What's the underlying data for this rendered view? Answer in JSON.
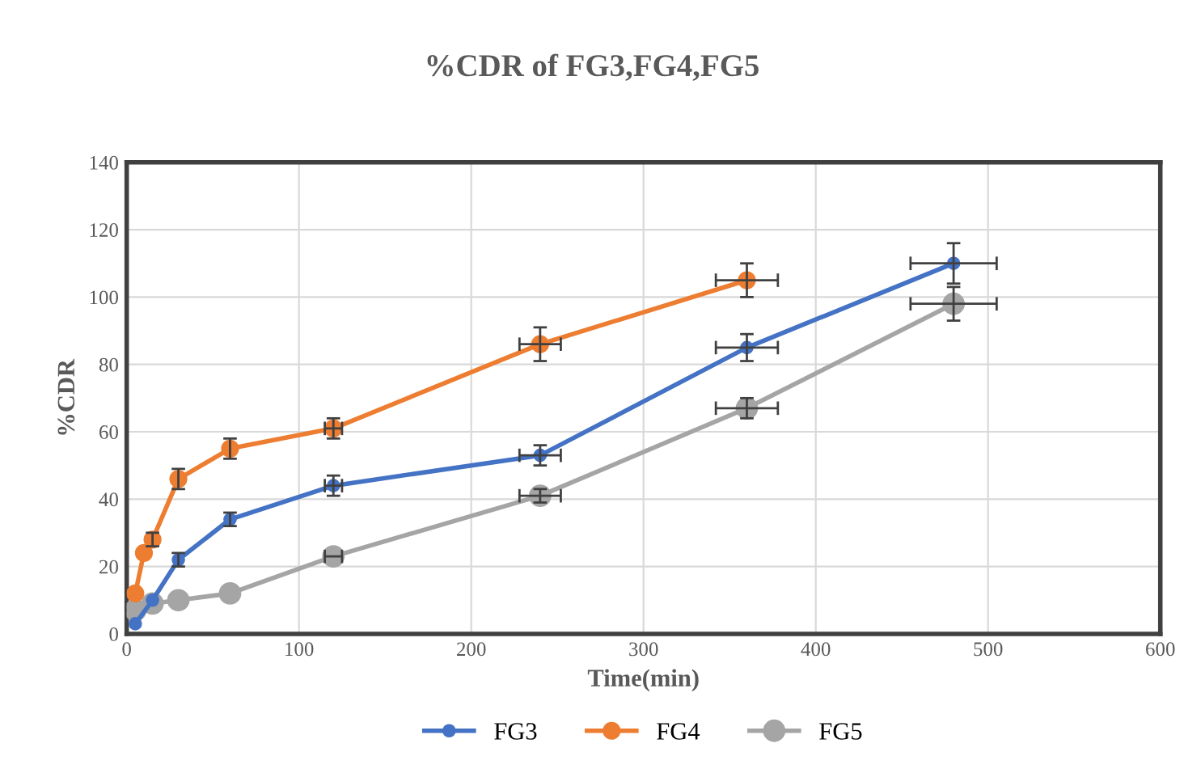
{
  "chart_data": {
    "type": "line",
    "title": "%CDR of FG3,FG4,FG5",
    "xlabel": "Time(min)",
    "ylabel": "%CDR",
    "xlim": [
      0,
      600
    ],
    "xticks": [
      0,
      100,
      200,
      300,
      400,
      500,
      600
    ],
    "ylim": [
      0,
      140
    ],
    "yticks": [
      0,
      20,
      40,
      60,
      80,
      100,
      120,
      140
    ],
    "grid": true,
    "legend": "bottom",
    "marker": "circle",
    "line_style": "solid",
    "series": [
      {
        "name": "FG3",
        "color": "#4472c4",
        "x": [
          5,
          15,
          30,
          60,
          120,
          240,
          360,
          480
        ],
        "values": [
          3,
          10,
          22,
          34,
          44,
          53,
          85,
          110
        ],
        "errors": [
          null,
          null,
          2,
          2,
          3,
          3,
          4,
          6
        ],
        "xerrors": [
          null,
          null,
          null,
          null,
          5,
          12,
          18,
          25
        ]
      },
      {
        "name": "FG4",
        "color": "#ed7d31",
        "x": [
          5,
          10,
          15,
          30,
          60,
          120,
          240,
          360
        ],
        "values": [
          12,
          24,
          28,
          46,
          55,
          61,
          86,
          105
        ],
        "errors": [
          null,
          null,
          2,
          3,
          3,
          3,
          5,
          5
        ],
        "xerrors": [
          null,
          null,
          null,
          null,
          null,
          5,
          12,
          18
        ]
      },
      {
        "name": "FG5",
        "color": "#a5a5a5",
        "x": [
          5,
          15,
          30,
          60,
          120,
          240,
          360,
          480
        ],
        "values": [
          7,
          9,
          10,
          12,
          23,
          41,
          67,
          98
        ],
        "errors": [
          null,
          null,
          null,
          null,
          null,
          2,
          3,
          5
        ],
        "xerrors": [
          null,
          null,
          null,
          null,
          5,
          12,
          18,
          25
        ]
      }
    ]
  }
}
